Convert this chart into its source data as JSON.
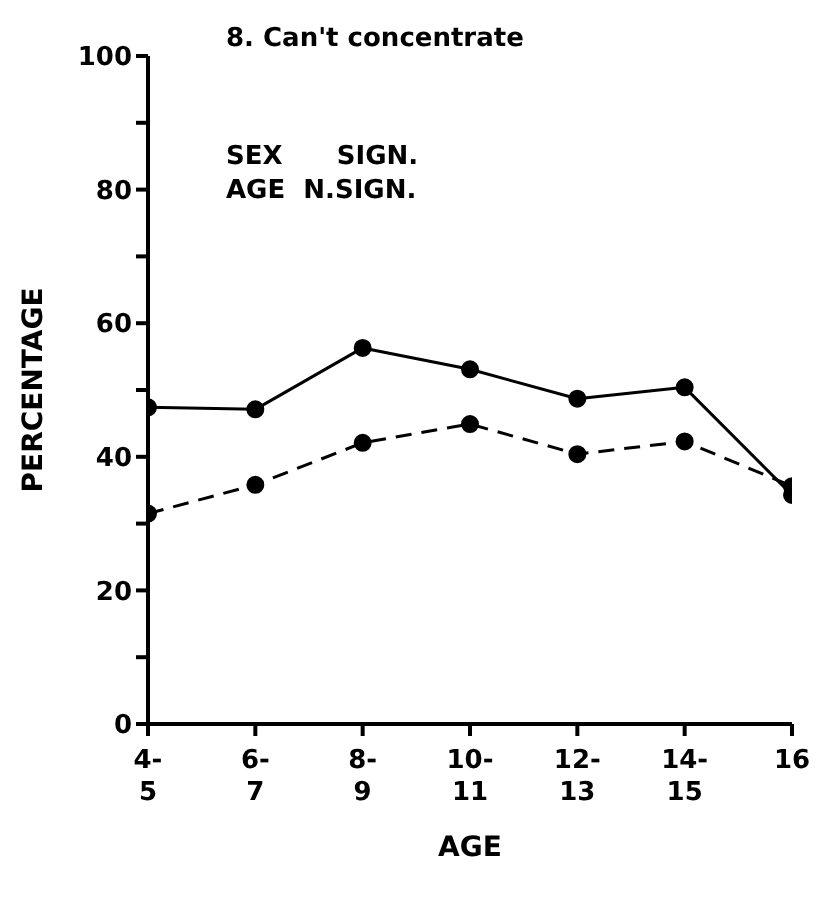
{
  "chart_data": {
    "type": "line",
    "title": "8. Can't concentrate",
    "xlabel": "AGE",
    "ylabel": "PERCENTAGE",
    "annotations": [
      "SEX      SIGN.",
      "AGE  N.SIGN."
    ],
    "categories": [
      "4-\n5",
      "6-\n7",
      "8-\n9",
      "10-\n11",
      "12-\n13",
      "14-\n15",
      "16"
    ],
    "series": [
      {
        "color": "#000000",
        "line_style": "solid",
        "values": [
          47.4,
          47.1,
          56.3,
          53.1,
          48.7,
          50.4,
          34.3
        ]
      },
      {
        "color": "#000000",
        "line_style": "dashed",
        "values": [
          31.5,
          35.8,
          42.1,
          44.9,
          40.4,
          42.3,
          35.6
        ]
      }
    ],
    "ylim": [
      0,
      100
    ],
    "yticks": [
      0,
      {
        "value": 10,
        "label": null
      },
      20,
      {
        "value": 30,
        "label": null
      },
      40,
      {
        "value": 50,
        "label": null
      },
      60,
      {
        "value": 70,
        "label": null
      },
      80,
      {
        "value": 90,
        "label": null
      },
      100
    ],
    "marker": "circle"
  }
}
